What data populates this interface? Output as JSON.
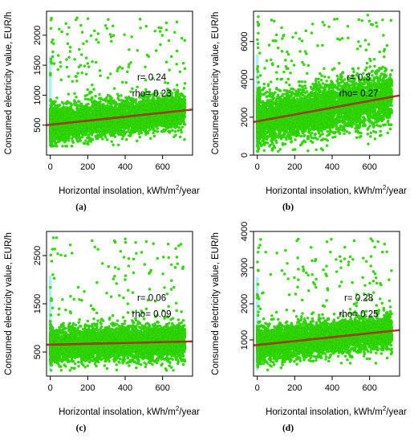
{
  "colors": {
    "points": "#33dd00",
    "points_edge": "#1fb800",
    "band": "#67e5e6",
    "fit_line": "#c9372a",
    "fit_line_dark": "#8a2a20",
    "axis": "#000000"
  },
  "chart_data": [
    {
      "type": "scatter",
      "panel_label": "(a)",
      "xlabel": "Horizontal insolation, kWh/m²/year",
      "ylabel": "Consumed electricity value, EUR/h",
      "xlim": [
        -20,
        760
      ],
      "ylim": [
        0,
        2400
      ],
      "x_ticks": [
        0,
        200,
        400,
        600
      ],
      "y_ticks": [
        500,
        1000,
        1500,
        2000
      ],
      "annotations": [
        "r= 0.24",
        "rho= 0.23"
      ],
      "fit": {
        "x": [
          -20,
          760
        ],
        "y": [
          500,
          760
        ]
      },
      "series": [
        {
          "values": {
            "x_range": [
              0,
              720
            ],
            "y_center": 560,
            "y_spread": 260,
            "y_min": 150,
            "outlier_max": 2300,
            "n": 4800
          }
        }
      ]
    },
    {
      "type": "scatter",
      "panel_label": "(b)",
      "xlabel": "Horizontal insolation, kWh/m²/year",
      "ylabel": "Consumed electricity value, EUR/h",
      "xlim": [
        -20,
        760
      ],
      "ylim": [
        0,
        7600
      ],
      "x_ticks": [
        0,
        200,
        400,
        600
      ],
      "y_ticks": [
        0,
        2000,
        4000,
        6000
      ],
      "annotations": [
        "r= 0.3",
        "rho= 0.27"
      ],
      "fit": {
        "x": [
          -20,
          760
        ],
        "y": [
          1750,
          3150
        ]
      },
      "series": [
        {
          "values": {
            "x_range": [
              0,
              720
            ],
            "y_center": 2200,
            "y_spread": 1200,
            "y_min": 200,
            "outlier_max": 7400,
            "n": 4800
          }
        }
      ]
    },
    {
      "type": "scatter",
      "panel_label": "(c)",
      "xlabel": "Horizontal insolation, kWh/m²/year",
      "ylabel": "Consumed electricity value, EUR/h",
      "xlim": [
        -20,
        760
      ],
      "ylim": [
        0,
        3000
      ],
      "x_ticks": [
        0,
        200,
        400,
        600
      ],
      "y_ticks": [
        500,
        1500,
        2500
      ],
      "annotations": [
        "r= 0.06",
        "rho= 0.09"
      ],
      "fit": {
        "x": [
          -20,
          760
        ],
        "y": [
          650,
          720
        ]
      },
      "series": [
        {
          "values": {
            "x_range": [
              0,
              720
            ],
            "y_center": 650,
            "y_spread": 320,
            "y_min": 120,
            "outlier_max": 2900,
            "n": 4800
          }
        }
      ]
    },
    {
      "type": "scatter",
      "panel_label": "(d)",
      "xlabel": "Horizontal insolation, kWh/m²/year",
      "ylabel": "Consumed electricity value, EUR/h",
      "xlim": [
        -20,
        760
      ],
      "ylim": [
        0,
        4000
      ],
      "x_ticks": [
        0,
        200,
        400,
        600
      ],
      "y_ticks": [
        1000,
        2000,
        3000,
        4000
      ],
      "annotations": [
        "r= 0.28",
        "rho= 0.25"
      ],
      "fit": {
        "x": [
          -20,
          760
        ],
        "y": [
          850,
          1270
        ]
      },
      "series": [
        {
          "values": {
            "x_range": [
              0,
              720
            ],
            "y_center": 900,
            "y_spread": 420,
            "y_min": 150,
            "outlier_max": 3800,
            "n": 4800
          }
        }
      ]
    }
  ]
}
